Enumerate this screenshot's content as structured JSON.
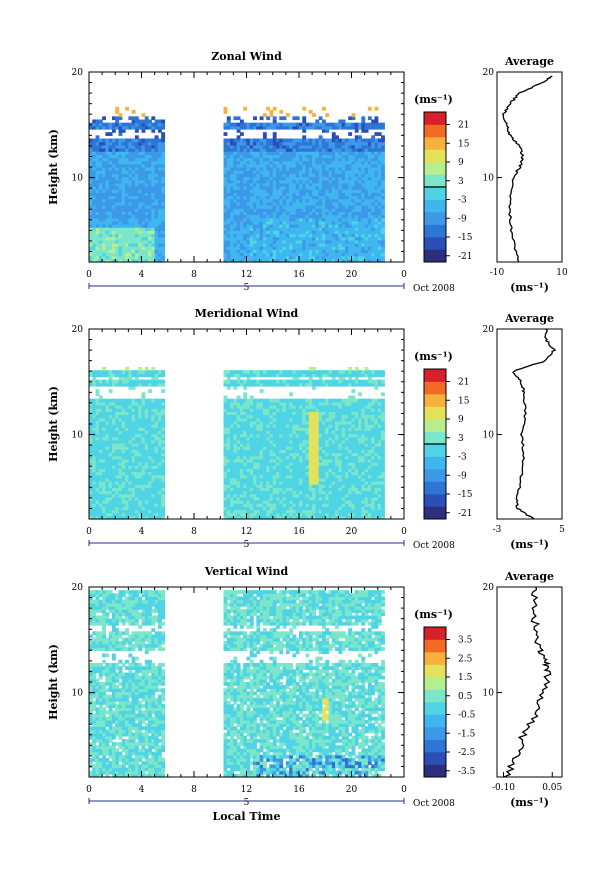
{
  "figure": {
    "x_axis_label": "Local Time",
    "date_label": "Oct 2008",
    "date_day": "5",
    "avg_unit_label": "(ms⁻¹)",
    "colorbar_unit_label": "(ms⁻¹)"
  },
  "chart_data": [
    {
      "type": "heatmap",
      "title": "Zonal Wind",
      "xlabel": "",
      "ylabel": "Height (km)",
      "xlim": [
        0,
        24
      ],
      "ylim": [
        2,
        20
      ],
      "xticks": [
        "0",
        "4",
        "8",
        "12",
        "16",
        "20",
        "0"
      ],
      "yticks": [
        "10",
        "20"
      ],
      "data_gap_hours": [
        5.6,
        10.2
      ],
      "top_of_data_km": 16.6,
      "colorbar": {
        "min": -24,
        "max": 24,
        "contour_at": 0,
        "tick_labels": [
          "21",
          "15",
          "9",
          "3",
          "-3",
          "-9",
          "-15",
          "-21"
        ]
      },
      "average_profile": {
        "title": "Average",
        "xlim": [
          -10,
          10
        ],
        "xtick_labels": [
          "-10",
          "10"
        ],
        "ylim": [
          2,
          20
        ],
        "ytick_labels": [
          "10",
          "20"
        ],
        "height_km": [
          2,
          4,
          6,
          8,
          10,
          11,
          12,
          13,
          14,
          15,
          16,
          17,
          18,
          19,
          19.6
        ],
        "wind_ms": [
          -3,
          -5,
          -6,
          -6,
          -5,
          -3,
          -2,
          -3,
          -6,
          -7,
          -8,
          -6,
          -3,
          4,
          7
        ]
      }
    },
    {
      "type": "heatmap",
      "title": "Meridional Wind",
      "xlabel": "",
      "ylabel": "Height (km)",
      "xlim": [
        0,
        24
      ],
      "ylim": [
        2,
        20
      ],
      "xticks": [
        "0",
        "4",
        "8",
        "12",
        "16",
        "20",
        "0"
      ],
      "yticks": [
        "10",
        "20"
      ],
      "data_gap_hours": [
        5.6,
        10.2
      ],
      "top_of_data_km": 16.2,
      "colorbar": {
        "min": -24,
        "max": 24,
        "contour_at": 0,
        "tick_labels": [
          "21",
          "15",
          "9",
          "3",
          "-3",
          "-9",
          "-15",
          "-21"
        ]
      },
      "average_profile": {
        "title": "Average",
        "xlim": [
          -3,
          5
        ],
        "xtick_labels": [
          "-3",
          "5"
        ],
        "ylim": [
          2,
          20
        ],
        "ytick_labels": [
          "10",
          "20"
        ],
        "height_km": [
          2,
          3,
          4,
          6,
          8,
          10,
          12,
          14,
          15,
          16,
          17,
          18,
          19,
          20
        ],
        "wind_ms": [
          1.5,
          -0.5,
          -0.5,
          0,
          0.3,
          0,
          0.5,
          0.3,
          0,
          -1,
          3,
          4,
          3,
          3
        ]
      }
    },
    {
      "type": "heatmap",
      "title": "Vertical Wind",
      "xlabel": "Local Time",
      "ylabel": "Height (km)",
      "xlim": [
        0,
        24
      ],
      "ylim": [
        2,
        20
      ],
      "xticks": [
        "0",
        "4",
        "8",
        "12",
        "16",
        "20",
        "0"
      ],
      "yticks": [
        "10",
        "20"
      ],
      "data_gap_hours": [
        5.6,
        10.2
      ],
      "top_of_data_km": 19.7,
      "colorbar": {
        "min": -4,
        "max": 4,
        "contour_at": null,
        "tick_labels": [
          "3.5",
          "2.5",
          "1.5",
          "0.5",
          "-0.5",
          "-1.5",
          "-2.5",
          "-3.5"
        ]
      },
      "average_profile": {
        "title": "Average",
        "xlim": [
          -0.12,
          0.08
        ],
        "xtick_labels": [
          "-0.10",
          "0.05"
        ],
        "ylim": [
          2,
          20
        ],
        "ytick_labels": [
          "10",
          "20"
        ],
        "height_km": [
          2,
          4,
          6,
          8,
          10,
          12,
          13,
          14,
          16,
          18,
          20
        ],
        "wind_ms": [
          -0.09,
          -0.06,
          -0.04,
          0.0,
          0.02,
          0.04,
          0.03,
          0.01,
          0.0,
          -0.01,
          0.0
        ]
      }
    }
  ]
}
